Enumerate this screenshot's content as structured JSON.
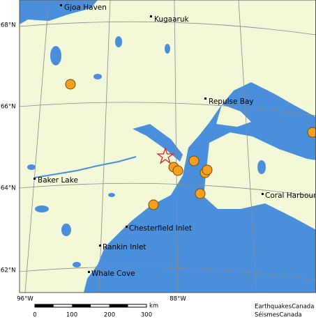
{
  "places": [
    "Gjoa Haven",
    "Kugaaruk",
    "Repulse Bay",
    "Baker Lake",
    "Coral Harbour",
    "Chesterfield Inlet",
    "Rankin Inlet",
    "Whale Cove"
  ],
  "latitudes": [
    "68°N",
    "66°N",
    "64°N",
    "62°N"
  ],
  "longitudes": [
    "96°W",
    "88°W"
  ],
  "scale": {
    "ticks": [
      "0",
      "100",
      "200",
      "300"
    ],
    "unit": "km"
  },
  "credits": [
    "EarthquakesCanada",
    "SéismesCanada"
  ]
}
